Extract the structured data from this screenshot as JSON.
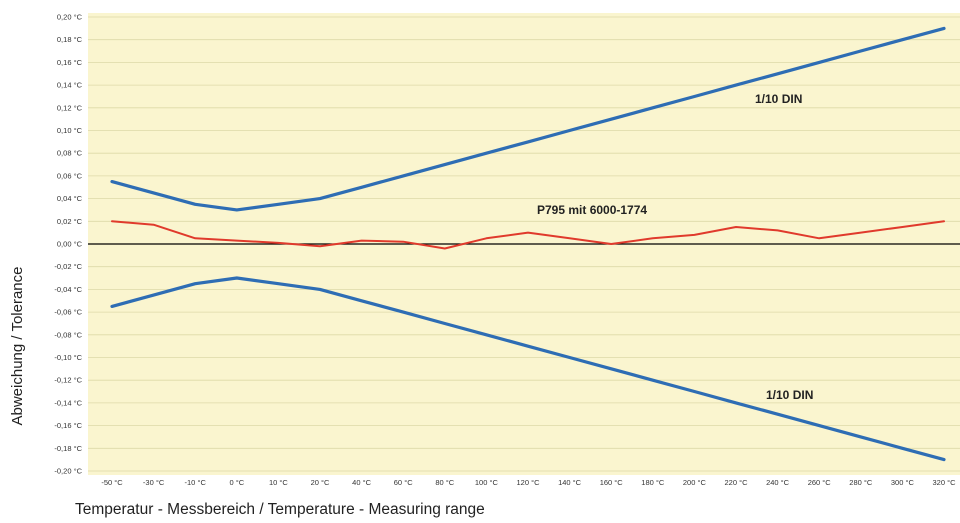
{
  "chart_data": {
    "type": "line",
    "x": [
      "-50 °C",
      "-30 °C",
      "-10 °C",
      "0 °C",
      "10 °C",
      "20 °C",
      "40 °C",
      "60 °C",
      "80 °C",
      "100 °C",
      "120 °C",
      "140 °C",
      "160 °C",
      "180 °C",
      "200 °C",
      "220 °C",
      "240 °C",
      "260 °C",
      "280 °C",
      "300 °C",
      "320 °C"
    ],
    "y_ticks": [
      "0,20 °C",
      "0,18 °C",
      "0,16 °C",
      "0,14 °C",
      "0,12 °C",
      "0,10 °C",
      "0,08 °C",
      "0,06 °C",
      "0,04 °C",
      "0,02 °C",
      "0,00 °C",
      "-0,02 °C",
      "-0,04 °C",
      "-0,06 °C",
      "-0,08 °C",
      "-0,10 °C",
      "-0,12 °C",
      "-0,14 °C",
      "-0,16 °C",
      "-0,18 °C",
      "-0,20 °C"
    ],
    "ylim": [
      -0.2,
      0.2
    ],
    "xlabel": "Temperatur - Messbereich / Temperature - Measuring range",
    "ylabel": "Abweichung / Tolerance",
    "grid": true,
    "series": [
      {
        "name": "1/10 DIN",
        "color": "#2e6db4",
        "values": [
          0.055,
          0.045,
          0.035,
          0.03,
          0.035,
          0.04,
          0.05,
          0.06,
          0.07,
          0.08,
          0.09,
          0.1,
          0.11,
          0.12,
          0.13,
          0.14,
          0.15,
          0.16,
          0.17,
          0.18,
          0.19
        ]
      },
      {
        "name": "1/10 DIN",
        "color": "#2e6db4",
        "values": [
          -0.055,
          -0.045,
          -0.035,
          -0.03,
          -0.035,
          -0.04,
          -0.05,
          -0.06,
          -0.07,
          -0.08,
          -0.09,
          -0.1,
          -0.11,
          -0.12,
          -0.13,
          -0.14,
          -0.15,
          -0.16,
          -0.17,
          -0.18,
          -0.19
        ]
      },
      {
        "name": "P795 mit 6000-1774",
        "color": "#e03a2c",
        "values": [
          0.02,
          0.017,
          0.005,
          0.003,
          0.001,
          -0.002,
          0.003,
          0.002,
          -0.004,
          0.005,
          0.01,
          0.005,
          0.0,
          0.005,
          0.008,
          0.015,
          0.012,
          0.005,
          0.01,
          0.015,
          0.02
        ]
      }
    ],
    "annotations": [
      {
        "text": "1/10 DIN",
        "series_index": 0
      },
      {
        "text": "P795 mit 6000-1774",
        "series_index": 2
      },
      {
        "text": "1/10 DIN",
        "series_index": 1
      }
    ],
    "colors": {
      "plot_background": "#faf5cf",
      "grid": "#ddd9a8",
      "zero_line": "#000000"
    }
  }
}
